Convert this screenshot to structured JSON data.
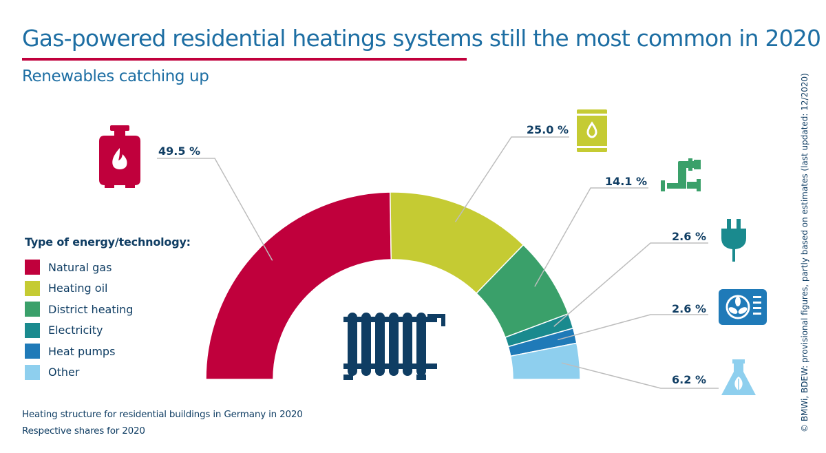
{
  "title": "Gas-powered residential heatings systems still the most common in 2020",
  "subtitle": "Renewables catching up",
  "legend": {
    "title": "Type of energy/technology:"
  },
  "footnotes": [
    "Heating structure for residential buildings in Germany in 2020",
    "Respective shares for 2020"
  ],
  "source": "© BMWi, BDEW: provisional figures, partly based on estimates (last updated: 12/2020)",
  "colors": {
    "natural_gas": "#c0003c",
    "heating_oil": "#c5cb33",
    "district_heating": "#3aa06a",
    "electricity": "#1a8a8e",
    "heat_pumps": "#1f7ab8",
    "other": "#8ecfee",
    "text": "#0f3d63",
    "accent_blue": "#1d6ea3"
  },
  "chart_data": {
    "type": "pie",
    "style": "semi-donut",
    "title": "Gas-powered residential heatings systems still the most common in 2020",
    "subtitle": "Renewables catching up",
    "unit": "%",
    "categories": [
      "Natural gas",
      "Heating oil",
      "District heating",
      "Electricity",
      "Heat pumps",
      "Other"
    ],
    "values": [
      49.5,
      25.0,
      14.1,
      2.6,
      2.6,
      6.2
    ],
    "labels": [
      "49.5 %",
      "25.0 %",
      "14.1 %",
      "2.6 %",
      "2.6 %",
      "6.2 %"
    ],
    "icons": [
      "gas-cylinder-icon",
      "oil-barrel-icon",
      "district-heating-pipe-icon",
      "electric-plug-icon",
      "heat-pump-icon",
      "other-flask-leaf-icon"
    ],
    "center_icon": "radiator-icon",
    "legend_position": "left"
  }
}
